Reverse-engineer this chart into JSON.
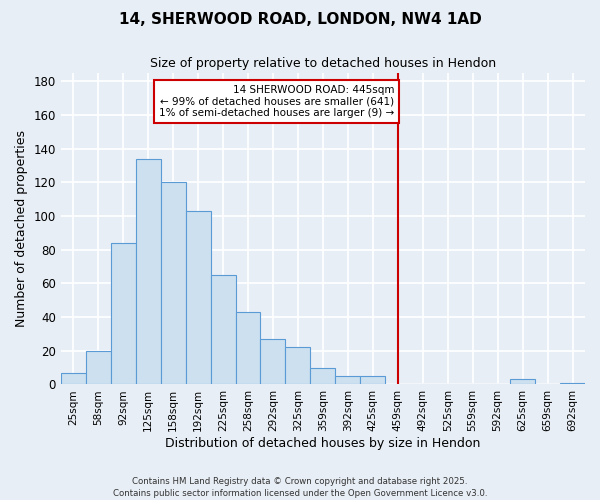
{
  "title": "14, SHERWOOD ROAD, LONDON, NW4 1AD",
  "subtitle": "Size of property relative to detached houses in Hendon",
  "xlabel": "Distribution of detached houses by size in Hendon",
  "ylabel": "Number of detached properties",
  "bar_color": "#cce0f0",
  "bar_edge_color": "#5b9bd5",
  "background_color": "#e8eef5",
  "grid_color": "#ffffff",
  "categories": [
    "25sqm",
    "58sqm",
    "92sqm",
    "125sqm",
    "158sqm",
    "192sqm",
    "225sqm",
    "258sqm",
    "292sqm",
    "325sqm",
    "359sqm",
    "392sqm",
    "425sqm",
    "459sqm",
    "492sqm",
    "525sqm",
    "559sqm",
    "592sqm",
    "625sqm",
    "659sqm",
    "692sqm"
  ],
  "values": [
    7,
    20,
    84,
    134,
    120,
    103,
    65,
    43,
    27,
    22,
    10,
    5,
    5,
    0,
    0,
    0,
    0,
    0,
    3,
    0,
    1
  ],
  "ylim": [
    0,
    185
  ],
  "yticks": [
    0,
    20,
    40,
    60,
    80,
    100,
    120,
    140,
    160,
    180
  ],
  "property_line_x": 13.0,
  "annotation_title": "14 SHERWOOD ROAD: 445sqm",
  "annotation_line1": "← 99% of detached houses are smaller (641)",
  "annotation_line2": "1% of semi-detached houses are larger (9) →",
  "annotation_color": "#cc0000",
  "footer": "Contains HM Land Registry data © Crown copyright and database right 2025.\nContains public sector information licensed under the Open Government Licence v3.0."
}
